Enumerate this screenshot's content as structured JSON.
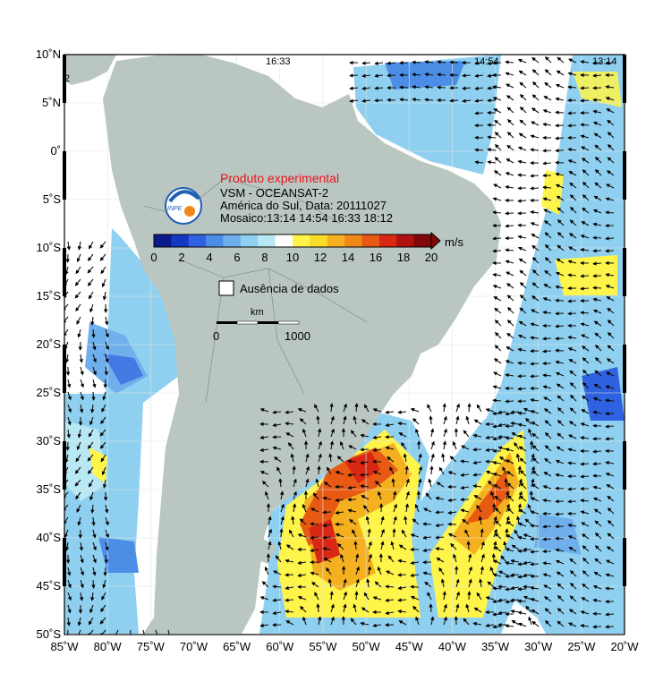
{
  "header": {
    "experimental": "Produto experimental",
    "product": "VSM - OCEANSAT-2",
    "region_date": "América do Sul, Data: 20111027",
    "mosaic": "Mosaico:13:14 14:54 16:33 18:12",
    "logo_text": "INPE"
  },
  "colorbar": {
    "unit": "m/s",
    "min": 0,
    "max": 20,
    "ticks": [
      "0",
      "2",
      "4",
      "6",
      "8",
      "10",
      "12",
      "14",
      "16",
      "18",
      "20"
    ],
    "colors": [
      "#0a1a8c",
      "#1238c4",
      "#2f62e0",
      "#4c8ee6",
      "#6fb0ec",
      "#8fd0f0",
      "#b8e8f4",
      "#ffffff",
      "#fff44a",
      "#f8dc28",
      "#f5b020",
      "#f08818",
      "#e85a14",
      "#d82814",
      "#b01010",
      "#800808"
    ]
  },
  "no_data": {
    "label": "Ausência de dados"
  },
  "scale_bar": {
    "unit": "km",
    "start": "0",
    "end": "1000"
  },
  "pass_times": [
    "16:33",
    "14:54",
    "13:14"
  ],
  "pass_partial": "2",
  "axes": {
    "lat_labels": [
      "10˚N",
      "5˚N",
      "0˚",
      "5˚S",
      "10˚S",
      "15˚S",
      "20˚S",
      "25˚S",
      "30˚S",
      "35˚S",
      "40˚S",
      "45˚S",
      "50˚S"
    ],
    "lon_labels": [
      "85˚W",
      "80˚W",
      "75˚W",
      "70˚W",
      "65˚W",
      "60˚W",
      "55˚W",
      "50˚W",
      "45˚W",
      "40˚W",
      "35˚W",
      "30˚W",
      "25˚W",
      "20˚W"
    ]
  },
  "colors": {
    "land": "#bac6c2",
    "frame": "#000000",
    "grid": "#dfe6e4"
  }
}
